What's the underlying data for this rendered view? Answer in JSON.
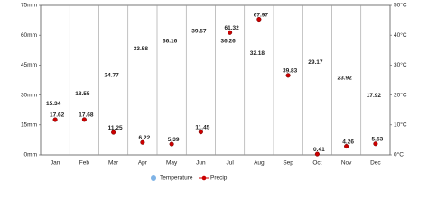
{
  "chart_data": {
    "type": "line",
    "categories": [
      "Jan",
      "Feb",
      "Mar",
      "Apr",
      "May",
      "Jun",
      "Jul",
      "Aug",
      "Sep",
      "Oct",
      "Nov",
      "Dec"
    ],
    "series": [
      {
        "name": "Temperature",
        "color": "#7fb3e6",
        "axis": "y2",
        "values": [
          15.34,
          18.55,
          24.77,
          33.58,
          36.16,
          39.57,
          36.26,
          32.18,
          null,
          29.17,
          23.92,
          17.92
        ]
      },
      {
        "name": "Precip",
        "color": "#cc0000",
        "values": [
          17.62,
          17.68,
          11.25,
          6.22,
          5.39,
          11.45,
          61.32,
          67.97,
          39.83,
          0.41,
          4.26,
          5.53
        ]
      }
    ],
    "ylim": [
      0,
      75
    ],
    "yticks": [
      {
        "value": 0,
        "label": "0mm"
      },
      {
        "value": 15,
        "label": "15mm"
      },
      {
        "value": 30,
        "label": "30mm"
      },
      {
        "value": 45,
        "label": "45mm"
      },
      {
        "value": 60,
        "label": "60mm"
      },
      {
        "value": 75,
        "label": "75mm"
      }
    ],
    "y2lim": [
      0,
      50
    ],
    "y2ticks": [
      {
        "value": 0,
        "label": "0°C"
      },
      {
        "value": 10,
        "label": "10°C"
      },
      {
        "value": 20,
        "label": "20°C"
      },
      {
        "value": 30,
        "label": "30°C"
      },
      {
        "value": 40,
        "label": "40°C"
      },
      {
        "value": 50,
        "label": "50°C"
      }
    ],
    "grid": true
  }
}
